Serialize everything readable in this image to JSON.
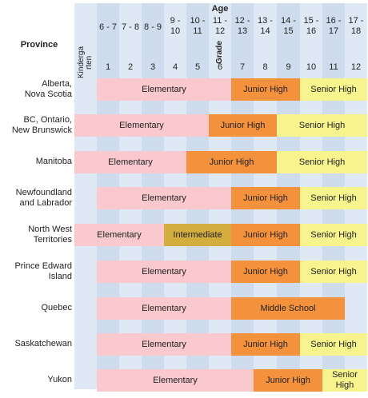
{
  "header": {
    "province_label": "Province",
    "age_label": "Age",
    "grade_label": "Grade",
    "kindergarten_label": "Kinderga rten"
  },
  "columns": [
    {
      "age": "",
      "grade": ""
    },
    {
      "age": "6 - 7",
      "grade": "1"
    },
    {
      "age": "7 - 8",
      "grade": "2"
    },
    {
      "age": "8 - 9",
      "grade": "3"
    },
    {
      "age": "9 - 10",
      "grade": "4"
    },
    {
      "age": "10 - 11",
      "grade": "5"
    },
    {
      "age": "11 - 12",
      "grade": "6"
    },
    {
      "age": "12 - 13",
      "grade": "7"
    },
    {
      "age": "13 - 14",
      "grade": "8"
    },
    {
      "age": "14 - 15",
      "grade": "9"
    },
    {
      "age": "15 - 16",
      "grade": "10"
    },
    {
      "age": "16 - 17",
      "grade": "11"
    },
    {
      "age": "17 - 18",
      "grade": "12"
    }
  ],
  "colors": {
    "elementary": "#f9c9cd",
    "junior_high": "#f4913c",
    "senior_high": "#f7f48e",
    "intermediate": "#d4ad3f",
    "middle_school": "#f4913c",
    "column_a": "#dfe9f6",
    "column_b": "#cfdcee"
  },
  "rows": [
    {
      "province": "Alberta,\nNova Scotia",
      "segments": [
        {
          "label": "Elementary",
          "from": 1,
          "to": 6,
          "kind": "elementary"
        },
        {
          "label": "Junior High",
          "from": 7,
          "to": 9,
          "kind": "junior_high"
        },
        {
          "label": "Senior High",
          "from": 10,
          "to": 12,
          "kind": "senior_high"
        }
      ]
    },
    {
      "province": "BC, Ontario,\nNew Brunswick",
      "segments": [
        {
          "label": "Elementary",
          "from": 0,
          "to": 5,
          "kind": "elementary"
        },
        {
          "label": "Junior High",
          "from": 6,
          "to": 8,
          "kind": "junior_high"
        },
        {
          "label": "Senior High",
          "from": 9,
          "to": 12,
          "kind": "senior_high"
        }
      ]
    },
    {
      "province": "Manitoba",
      "segments": [
        {
          "label": "Elementary",
          "from": 0,
          "to": 4,
          "kind": "elementary"
        },
        {
          "label": "Junior High",
          "from": 5,
          "to": 8,
          "kind": "junior_high"
        },
        {
          "label": "Senior High",
          "from": 9,
          "to": 12,
          "kind": "senior_high"
        }
      ]
    },
    {
      "province": "Newfoundland\nand Labrador",
      "segments": [
        {
          "label": "Elementary",
          "from": 1,
          "to": 6,
          "kind": "elementary"
        },
        {
          "label": "Junior High",
          "from": 7,
          "to": 9,
          "kind": "junior_high"
        },
        {
          "label": "Senior High",
          "from": 10,
          "to": 12,
          "kind": "senior_high"
        }
      ]
    },
    {
      "province": "North West\nTerritories",
      "segments": [
        {
          "label": "Elementary",
          "from": 0,
          "to": 3,
          "kind": "elementary"
        },
        {
          "label": "Intermediate",
          "from": 4,
          "to": 6,
          "kind": "intermediate"
        },
        {
          "label": "Junior High",
          "from": 7,
          "to": 9,
          "kind": "junior_high"
        },
        {
          "label": "Senior High",
          "from": 10,
          "to": 12,
          "kind": "senior_high"
        }
      ]
    },
    {
      "province": "Prince Edward\nIsland",
      "segments": [
        {
          "label": "Elementary",
          "from": 1,
          "to": 6,
          "kind": "elementary"
        },
        {
          "label": "Junior High",
          "from": 7,
          "to": 9,
          "kind": "junior_high"
        },
        {
          "label": "Senior High",
          "from": 10,
          "to": 12,
          "kind": "senior_high"
        }
      ]
    },
    {
      "province": "Quebec",
      "segments": [
        {
          "label": "Elementary",
          "from": 1,
          "to": 6,
          "kind": "elementary"
        },
        {
          "label": "Middle School",
          "from": 7,
          "to": 11,
          "kind": "middle_school"
        }
      ]
    },
    {
      "province": "Saskatchewan",
      "segments": [
        {
          "label": "Elementary",
          "from": 1,
          "to": 6,
          "kind": "elementary"
        },
        {
          "label": "Junior High",
          "from": 7,
          "to": 9,
          "kind": "junior_high"
        },
        {
          "label": "Senior High",
          "from": 10,
          "to": 12,
          "kind": "senior_high"
        }
      ]
    },
    {
      "province": "Yukon",
      "segments": [
        {
          "label": "Elementary",
          "from": 1,
          "to": 7,
          "kind": "elementary"
        },
        {
          "label": "Junior High",
          "from": 8,
          "to": 10,
          "kind": "junior_high"
        },
        {
          "label": "Senior\nHigh",
          "from": 11,
          "to": 12,
          "kind": "senior_high"
        }
      ]
    }
  ]
}
